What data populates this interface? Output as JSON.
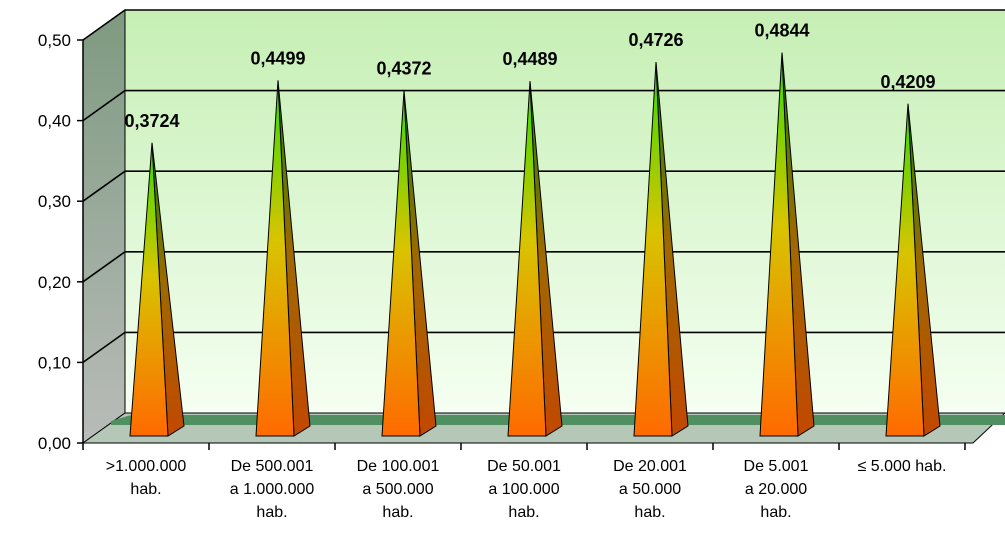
{
  "chart_data": {
    "type": "bar",
    "bar_shape": "pyramid",
    "categories": [
      [
        ">1.000.000",
        "hab."
      ],
      [
        "De 500.001",
        "a 1.000.000",
        "hab."
      ],
      [
        "De 100.001",
        "a 500.000",
        "hab."
      ],
      [
        "De 50.001",
        "a 100.000",
        "hab."
      ],
      [
        "De 20.001",
        "a 50.000",
        "hab."
      ],
      [
        "De 5.001",
        "a 20.000",
        "hab."
      ],
      [
        "≤ 5.000 hab."
      ]
    ],
    "values": [
      0.3724,
      0.4499,
      0.4372,
      0.4489,
      0.4726,
      0.4844,
      0.4209
    ],
    "data_labels": [
      "0,3724",
      "0,4499",
      "0,4372",
      "0,4489",
      "0,4726",
      "0,4844",
      "0,4209"
    ],
    "yticks": [
      0.0,
      0.1,
      0.2,
      0.3,
      0.4,
      0.5
    ],
    "ytick_labels": [
      "0,00",
      "0,10",
      "0,20",
      "0,30",
      "0,40",
      "0,50"
    ],
    "ylim": [
      0,
      0.5
    ],
    "grid": true,
    "title": "",
    "xlabel": "",
    "ylabel": "",
    "colors": {
      "bar_top": "#33dd00",
      "bar_mid": "#d8c400",
      "bar_bottom": "#ff6a00",
      "bar_side": "#b84a00",
      "wall_top": "#c8f0b8",
      "wall_bottom": "#f4fff0",
      "side_wall": "#9aa89a",
      "floor": "#4f8f60"
    }
  }
}
